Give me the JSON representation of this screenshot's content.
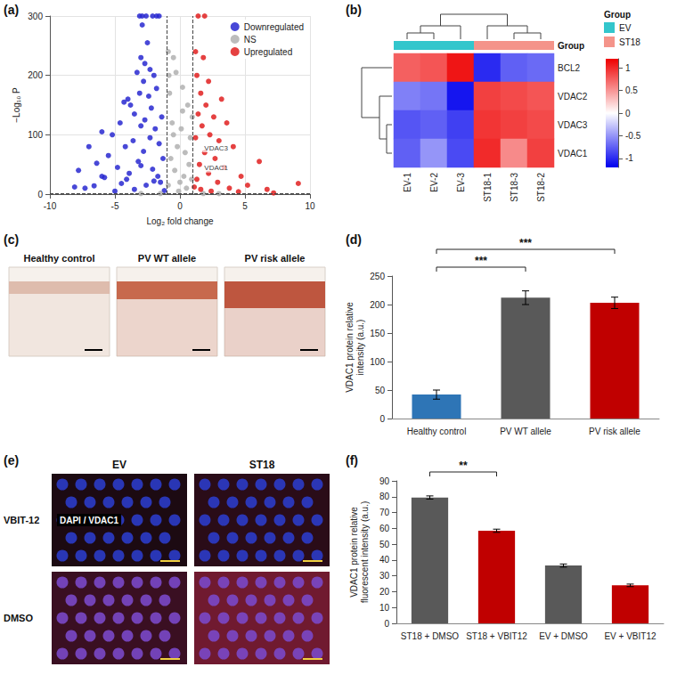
{
  "chart_data": [
    {
      "type": "scatter",
      "panel": "(a)",
      "x_label": "Log₂ fold change",
      "y_label": "−Log₁₀ P",
      "xlim": [
        -10,
        10
      ],
      "xticks": [
        -10,
        -5,
        0,
        5,
        10
      ],
      "ylim": [
        0,
        300
      ],
      "yticks": [
        0,
        100,
        200,
        300
      ],
      "grid": true,
      "legend": "top-right",
      "series": [
        {
          "name": "Downregulated",
          "color": "#2828d0",
          "x": [
            -1.6,
            -1.8,
            -2.1,
            -2.6,
            -2.9,
            -3.1,
            -2.9,
            -2.5,
            -3.0,
            -2.7,
            -2.3,
            -3.3,
            -2.0,
            -2.8,
            -1.8,
            -3.1,
            -2.4,
            -4.0,
            -4.3,
            -3.8,
            -2.2,
            -3.5,
            -1.4,
            -2.7,
            -4.6,
            -3.0,
            -1.9,
            -6.0,
            -5.2,
            -2.3,
            -3.6,
            -7.0,
            -1.6,
            -4.2,
            -2.8,
            -5.5,
            -1.3,
            -3.2,
            -6.4,
            -4.8,
            -2.1,
            -7.8,
            -3.9,
            -1.7,
            -5.8,
            -8.1,
            -7.3,
            -6.6,
            -4.5,
            -2.6,
            -3.5,
            -5.0,
            -1.2,
            -2.0,
            -4.1,
            -6.0,
            -3.0,
            -1.5
          ],
          "values": [
            300,
            300,
            300,
            300,
            300,
            300,
            285,
            255,
            230,
            220,
            210,
            205,
            200,
            190,
            178,
            170,
            165,
            160,
            155,
            150,
            145,
            135,
            130,
            125,
            120,
            115,
            110,
            105,
            100,
            95,
            90,
            80,
            85,
            80,
            72,
            65,
            60,
            55,
            52,
            45,
            42,
            40,
            35,
            30,
            28,
            12,
            10,
            14,
            18,
            15,
            8,
            5,
            6,
            22,
            25,
            30,
            48,
            20
          ]
        },
        {
          "name": "NS",
          "color": "#b0b0b0",
          "x": [
            -0.9,
            -0.5,
            -0.3,
            0.2,
            0.6,
            -0.8,
            -0.6,
            0.1,
            0.8,
            -0.2,
            0.4,
            -0.7,
            0.7,
            -0.4,
            0.3,
            0,
            -0.9,
            0.5,
            -0.1,
            0.9,
            -1.5,
            1.8,
            -3,
            3,
            -0.5,
            0.2,
            -0.85,
            0.95
          ],
          "values": [
            240,
            230,
            205,
            180,
            150,
            170,
            120,
            110,
            95,
            80,
            70,
            60,
            50,
            40,
            30,
            20,
            15,
            10,
            5,
            25,
            1,
            1,
            1,
            0.8,
            100,
            140,
            200,
            130
          ]
        },
        {
          "name": "Upregulated",
          "color": "#e02020",
          "x": [
            1.4,
            1.9,
            1.2,
            1.8,
            1.3,
            2.2,
            1.6,
            3.2,
            2.0,
            1.4,
            2.6,
            3.6,
            1.7,
            2.3,
            1.2,
            3.0,
            4.1,
            1.9,
            2.7,
            6.1,
            1.5,
            3.4,
            2.2,
            4.7,
            1.3,
            2.9,
            5.2,
            9.1,
            6.7,
            3.8,
            1.6,
            2.4,
            4.5,
            7.2,
            1.1
          ],
          "values": [
            300,
            300,
            240,
            230,
            200,
            190,
            170,
            160,
            150,
            135,
            130,
            120,
            115,
            100,
            95,
            90,
            80,
            70,
            60,
            55,
            50,
            45,
            35,
            30,
            25,
            20,
            15,
            18,
            8,
            10,
            8,
            5,
            4,
            2,
            12
          ]
        }
      ],
      "reference_lines": {
        "x": [
          -1,
          1
        ],
        "y": [
          1.3
        ]
      },
      "annotations": [
        {
          "text": "VDAC3",
          "x": 1.6,
          "y": 78
        },
        {
          "text": "VDAC1",
          "x": 1.6,
          "y": 44
        }
      ]
    },
    {
      "type": "heatmap",
      "panel": "(b)",
      "columns": [
        "EV-1",
        "EV-2",
        "EV-3",
        "ST18-1",
        "ST18-3",
        "ST18-2"
      ],
      "rows": [
        "BCL2",
        "VDAC2",
        "VDAC3",
        "VDAC1"
      ],
      "cells": [
        [
          0.75,
          0.8,
          1.1,
          -1.0,
          -0.75,
          -0.7
        ],
        [
          -0.6,
          -0.65,
          -1.1,
          0.9,
          0.85,
          0.8
        ],
        [
          -0.8,
          -0.75,
          -0.9,
          0.95,
          0.9,
          0.85
        ],
        [
          -0.75,
          -0.5,
          -0.85,
          1.0,
          0.55,
          0.9
        ]
      ],
      "annotation_row": "Group",
      "legend_title": "Group",
      "groups": [
        {
          "name": "EV",
          "color": "#33c6cc",
          "columns": [
            "EV-1",
            "EV-2",
            "EV-3"
          ]
        },
        {
          "name": "ST18",
          "color": "#f4948a",
          "columns": [
            "ST18-1",
            "ST18-3",
            "ST18-2"
          ]
        }
      ],
      "colorbar": {
        "range": [
          -1.2,
          1.2
        ],
        "ticks": [
          -1,
          -0.5,
          0,
          0.5,
          1
        ],
        "colors": [
          "#0000ee",
          "#ffffff",
          "#ee0000"
        ]
      }
    },
    {
      "type": "bar",
      "panel": "(d)",
      "categories": [
        "Healthy control",
        "PV WT allele",
        "PV risk allele"
      ],
      "values": [
        42,
        212,
        203
      ],
      "errors": [
        8,
        12,
        10
      ],
      "colors": [
        "#2e75b6",
        "#595959",
        "#c00000"
      ],
      "ylim": [
        0,
        250
      ],
      "yticks": [
        0,
        50,
        100,
        150,
        200,
        250
      ],
      "grid": false,
      "y_label": "VDAC1 protein relative intensity (a.u.)",
      "annotations": [
        {
          "text": "***",
          "between": [
            "Healthy control",
            "PV WT allele"
          ]
        },
        {
          "text": "***",
          "between": [
            "Healthy control",
            "PV risk allele"
          ]
        }
      ]
    },
    {
      "type": "bar",
      "panel": "(f)",
      "categories": [
        "ST18 + DMSO",
        "ST18 + VBIT12",
        "EV + DMSO",
        "EV + VBIT12"
      ],
      "values": [
        79.5,
        58.5,
        36.5,
        24
      ],
      "errors": [
        1,
        1,
        1,
        0.8
      ],
      "colors": [
        "#595959",
        "#c00000",
        "#595959",
        "#c00000"
      ],
      "ylim": [
        0,
        90
      ],
      "yticks": [
        0,
        10,
        20,
        30,
        40,
        50,
        60,
        70,
        80,
        90
      ],
      "grid": false,
      "y_label": "VDAC1 protein relative fluorescent intensity (a.u.)",
      "annotations": [
        {
          "text": "**",
          "between": [
            "ST18 + DMSO",
            "ST18 + VBIT12"
          ]
        }
      ]
    }
  ],
  "figures": {
    "c": {
      "panel": "(c)",
      "images": [
        "Healthy control",
        "PV WT allele",
        "PV risk allele"
      ]
    },
    "e": {
      "panel": "(e)",
      "columns": [
        "EV",
        "ST18"
      ],
      "rows": [
        "VBIT-12",
        "DMSO"
      ],
      "channel_label": "DAPI / VDAC1"
    }
  }
}
